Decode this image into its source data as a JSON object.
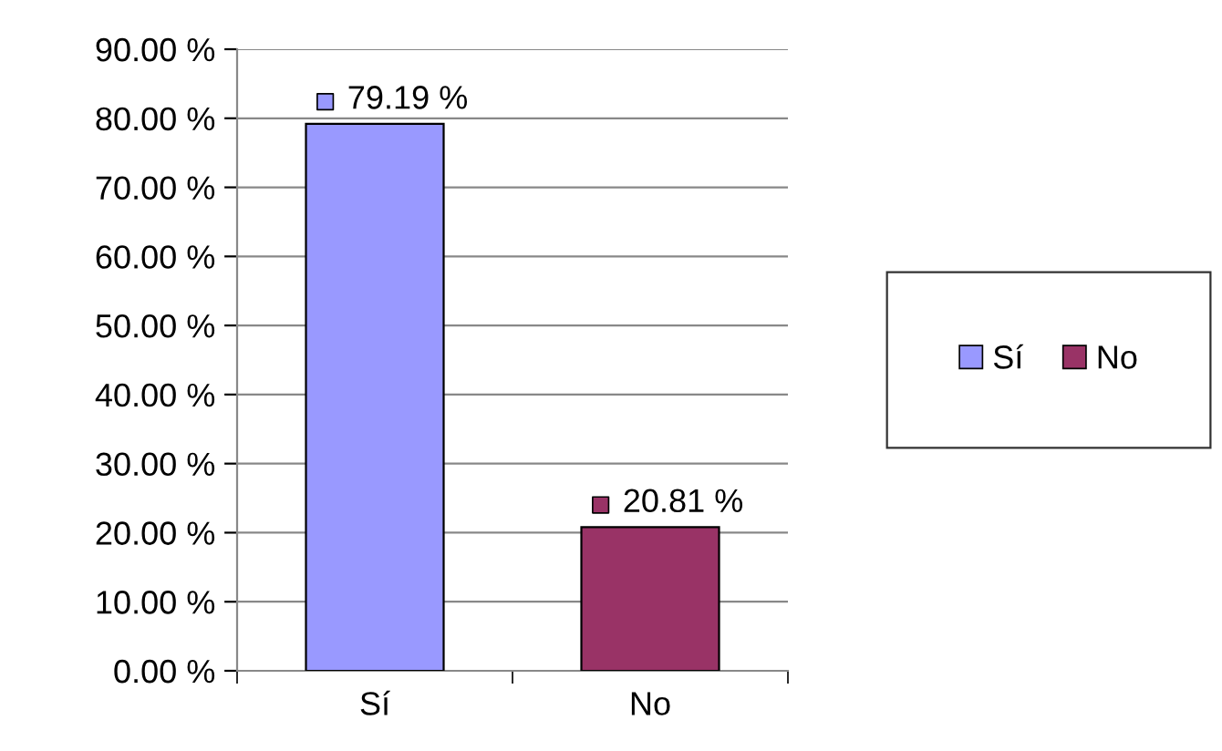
{
  "chart_data": {
    "type": "bar",
    "categories": [
      "Sí",
      "No"
    ],
    "series": [
      {
        "name": "Sí",
        "color": "#9999ff",
        "values": [
          79.19,
          null
        ],
        "value_labels": [
          "79.19 %",
          null
        ]
      },
      {
        "name": "No",
        "color": "#993366",
        "values": [
          null,
          20.81
        ],
        "value_labels": [
          null,
          "20.81 %"
        ]
      }
    ],
    "ylim": [
      0,
      90
    ],
    "yticks": [
      {
        "value": 0,
        "label": "0.00 %"
      },
      {
        "value": 10,
        "label": "10.00 %"
      },
      {
        "value": 20,
        "label": "20.00 %"
      },
      {
        "value": 30,
        "label": "30.00 %"
      },
      {
        "value": 40,
        "label": "40.00 %"
      },
      {
        "value": 50,
        "label": "50.00 %"
      },
      {
        "value": 60,
        "label": "60.00 %"
      },
      {
        "value": 70,
        "label": "70.00 %"
      },
      {
        "value": 80,
        "label": "80.00 %"
      },
      {
        "value": 90,
        "label": "90.00 %"
      }
    ],
    "grid": "y",
    "legend": "right"
  }
}
